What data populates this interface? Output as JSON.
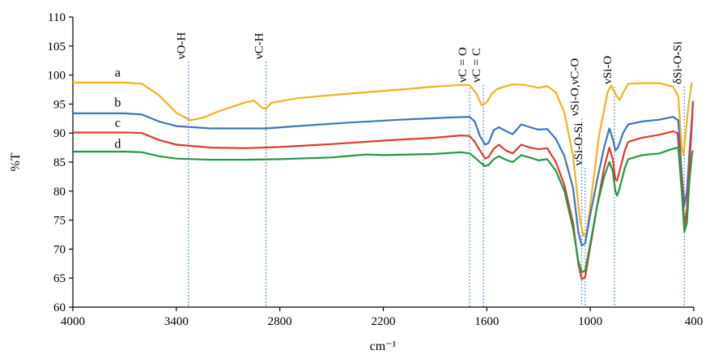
{
  "chart_data": {
    "type": "line",
    "xlabel": "cm⁻¹",
    "ylabel": "%T",
    "xlim": [
      4000,
      400
    ],
    "ylim": [
      60,
      110
    ],
    "x_reversed": true,
    "grid": false,
    "legend": "none",
    "x_ticks": [
      4000,
      3400,
      2800,
      2200,
      1600,
      1000,
      400
    ],
    "y_ticks": [
      60,
      65,
      70,
      75,
      80,
      85,
      90,
      95,
      100,
      105,
      110
    ],
    "series": [
      {
        "name": "a",
        "color": "#f5b21b",
        "points": [
          [
            4000,
            98.7
          ],
          [
            3700,
            98.7
          ],
          [
            3600,
            98.5
          ],
          [
            3500,
            96.5
          ],
          [
            3400,
            93.5
          ],
          [
            3320,
            92.2
          ],
          [
            3250,
            92.6
          ],
          [
            3150,
            93.8
          ],
          [
            3000,
            95.3
          ],
          [
            2950,
            95.6
          ],
          [
            2900,
            94.3
          ],
          [
            2880,
            94.2
          ],
          [
            2850,
            95.2
          ],
          [
            2700,
            96.0
          ],
          [
            2400,
            96.8
          ],
          [
            2100,
            97.5
          ],
          [
            1900,
            98.0
          ],
          [
            1750,
            98.3
          ],
          [
            1700,
            98.3
          ],
          [
            1660,
            96.8
          ],
          [
            1630,
            94.8
          ],
          [
            1600,
            95.3
          ],
          [
            1570,
            96.8
          ],
          [
            1540,
            97.6
          ],
          [
            1500,
            98.0
          ],
          [
            1450,
            98.4
          ],
          [
            1380,
            98.3
          ],
          [
            1300,
            97.8
          ],
          [
            1250,
            98.1
          ],
          [
            1200,
            97.0
          ],
          [
            1150,
            93.5
          ],
          [
            1100,
            86.0
          ],
          [
            1060,
            75.0
          ],
          [
            1040,
            72.3
          ],
          [
            1020,
            73.0
          ],
          [
            990,
            80.0
          ],
          [
            950,
            89.5
          ],
          [
            900,
            97.0
          ],
          [
            880,
            98.2
          ],
          [
            850,
            96.5
          ],
          [
            830,
            95.7
          ],
          [
            800,
            97.5
          ],
          [
            780,
            98.5
          ],
          [
            700,
            98.6
          ],
          [
            600,
            98.6
          ],
          [
            520,
            98.0
          ],
          [
            490,
            96.3
          ],
          [
            470,
            87.5
          ],
          [
            460,
            86.2
          ],
          [
            445,
            90.5
          ],
          [
            430,
            95.0
          ],
          [
            415,
            98.0
          ],
          [
            410,
            98.7
          ]
        ]
      },
      {
        "name": "b",
        "color": "#3d73c1",
        "points": [
          [
            4000,
            93.4
          ],
          [
            3700,
            93.4
          ],
          [
            3600,
            93.2
          ],
          [
            3500,
            92.0
          ],
          [
            3400,
            91.2
          ],
          [
            3200,
            90.8
          ],
          [
            3000,
            90.8
          ],
          [
            2880,
            90.8
          ],
          [
            2700,
            91.2
          ],
          [
            2400,
            91.8
          ],
          [
            2100,
            92.3
          ],
          [
            1800,
            92.7
          ],
          [
            1700,
            92.8
          ],
          [
            1670,
            92.0
          ],
          [
            1640,
            89.5
          ],
          [
            1610,
            88.0
          ],
          [
            1590,
            88.3
          ],
          [
            1560,
            90.5
          ],
          [
            1530,
            91.0
          ],
          [
            1480,
            90.2
          ],
          [
            1450,
            89.8
          ],
          [
            1400,
            91.5
          ],
          [
            1350,
            91.0
          ],
          [
            1300,
            90.6
          ],
          [
            1250,
            90.7
          ],
          [
            1200,
            89.0
          ],
          [
            1150,
            86.0
          ],
          [
            1100,
            80.5
          ],
          [
            1070,
            73.0
          ],
          [
            1050,
            70.6
          ],
          [
            1030,
            71.0
          ],
          [
            1000,
            76.0
          ],
          [
            960,
            82.0
          ],
          [
            920,
            87.5
          ],
          [
            890,
            90.8
          ],
          [
            870,
            89.0
          ],
          [
            855,
            87.0
          ],
          [
            840,
            87.5
          ],
          [
            810,
            90.0
          ],
          [
            780,
            91.5
          ],
          [
            700,
            92.0
          ],
          [
            600,
            92.3
          ],
          [
            520,
            92.8
          ],
          [
            490,
            92.2
          ],
          [
            470,
            83.0
          ],
          [
            455,
            77.5
          ],
          [
            440,
            80.0
          ],
          [
            425,
            87.0
          ],
          [
            410,
            93.0
          ],
          [
            405,
            95.5
          ]
        ]
      },
      {
        "name": "c",
        "color": "#e03a2f",
        "points": [
          [
            4000,
            90.1
          ],
          [
            3700,
            90.1
          ],
          [
            3600,
            90.0
          ],
          [
            3500,
            88.8
          ],
          [
            3400,
            88.0
          ],
          [
            3200,
            87.5
          ],
          [
            3000,
            87.4
          ],
          [
            2800,
            87.6
          ],
          [
            2500,
            88.1
          ],
          [
            2200,
            88.7
          ],
          [
            1900,
            89.2
          ],
          [
            1750,
            89.6
          ],
          [
            1700,
            89.5
          ],
          [
            1670,
            88.5
          ],
          [
            1640,
            87.0
          ],
          [
            1610,
            85.6
          ],
          [
            1590,
            85.9
          ],
          [
            1560,
            87.3
          ],
          [
            1530,
            88.0
          ],
          [
            1490,
            87.0
          ],
          [
            1450,
            86.5
          ],
          [
            1400,
            88.0
          ],
          [
            1350,
            87.5
          ],
          [
            1300,
            87.2
          ],
          [
            1250,
            87.4
          ],
          [
            1200,
            85.0
          ],
          [
            1150,
            81.0
          ],
          [
            1100,
            74.5
          ],
          [
            1070,
            67.5
          ],
          [
            1050,
            64.8
          ],
          [
            1030,
            65.2
          ],
          [
            1000,
            70.5
          ],
          [
            960,
            77.5
          ],
          [
            920,
            84.0
          ],
          [
            890,
            87.5
          ],
          [
            870,
            85.5
          ],
          [
            855,
            82.0
          ],
          [
            845,
            81.8
          ],
          [
            830,
            83.5
          ],
          [
            800,
            87.0
          ],
          [
            780,
            88.5
          ],
          [
            700,
            89.2
          ],
          [
            600,
            89.7
          ],
          [
            520,
            90.3
          ],
          [
            495,
            90.0
          ],
          [
            470,
            82.0
          ],
          [
            455,
            73.8
          ],
          [
            440,
            77.0
          ],
          [
            425,
            85.0
          ],
          [
            410,
            92.0
          ],
          [
            405,
            95.5
          ]
        ]
      },
      {
        "name": "d",
        "color": "#23993f",
        "points": [
          [
            4000,
            86.8
          ],
          [
            3700,
            86.8
          ],
          [
            3600,
            86.7
          ],
          [
            3500,
            86.0
          ],
          [
            3400,
            85.6
          ],
          [
            3200,
            85.4
          ],
          [
            3000,
            85.4
          ],
          [
            2800,
            85.5
          ],
          [
            2500,
            85.8
          ],
          [
            2340,
            86.2
          ],
          [
            2300,
            86.3
          ],
          [
            2200,
            86.2
          ],
          [
            1900,
            86.4
          ],
          [
            1750,
            86.7
          ],
          [
            1700,
            86.5
          ],
          [
            1670,
            85.8
          ],
          [
            1640,
            85.0
          ],
          [
            1610,
            84.3
          ],
          [
            1590,
            84.5
          ],
          [
            1560,
            85.5
          ],
          [
            1530,
            86.0
          ],
          [
            1490,
            85.4
          ],
          [
            1450,
            85.0
          ],
          [
            1400,
            86.2
          ],
          [
            1350,
            85.8
          ],
          [
            1300,
            85.3
          ],
          [
            1250,
            85.5
          ],
          [
            1200,
            83.5
          ],
          [
            1150,
            80.0
          ],
          [
            1100,
            73.5
          ],
          [
            1070,
            68.0
          ],
          [
            1050,
            66.0
          ],
          [
            1030,
            66.3
          ],
          [
            1000,
            71.0
          ],
          [
            960,
            77.5
          ],
          [
            920,
            82.5
          ],
          [
            890,
            85.0
          ],
          [
            870,
            83.5
          ],
          [
            855,
            80.0
          ],
          [
            845,
            79.2
          ],
          [
            830,
            80.5
          ],
          [
            800,
            84.0
          ],
          [
            780,
            85.5
          ],
          [
            700,
            86.2
          ],
          [
            600,
            86.5
          ],
          [
            520,
            87.3
          ],
          [
            490,
            87.5
          ],
          [
            470,
            80.0
          ],
          [
            455,
            73.0
          ],
          [
            440,
            74.5
          ],
          [
            425,
            82.0
          ],
          [
            410,
            86.5
          ],
          [
            405,
            87.0
          ]
        ]
      }
    ],
    "series_labels": [
      {
        "text": "a",
        "x": 3740,
        "y": 99.2
      },
      {
        "text": "b",
        "x": 3740,
        "y": 94.0
      },
      {
        "text": "c",
        "x": 3740,
        "y": 90.5
      },
      {
        "text": "d",
        "x": 3740,
        "y": 86.9
      }
    ],
    "bands": [
      {
        "label": "νO-H",
        "x": 3330,
        "y_top": 102.3
      },
      {
        "label": "νC-H",
        "x": 2880,
        "y_top": 102.3
      },
      {
        "label": "νC = O",
        "x": 1700,
        "y_top": 98.3
      },
      {
        "label": "νC = C",
        "x": 1620,
        "y_top": 98.3
      },
      {
        "label": "νSi-O,νC-O",
        "x": 1050,
        "y_top": 92.5
      },
      {
        "label": "νSi-O-Si",
        "x": 1030,
        "y_top": 84.0
      },
      {
        "label": "νSi-O",
        "x": 860,
        "y_top": 98.0
      },
      {
        "label": "δSi-O-Si",
        "x": 455,
        "y_top": 98.0
      }
    ]
  }
}
